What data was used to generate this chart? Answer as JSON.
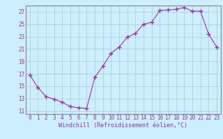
{
  "x": [
    0,
    1,
    2,
    3,
    4,
    5,
    6,
    7,
    8,
    9,
    10,
    11,
    12,
    13,
    14,
    15,
    16,
    17,
    18,
    19,
    20,
    21,
    22,
    23
  ],
  "y": [
    16.8,
    14.8,
    13.3,
    12.9,
    12.4,
    11.7,
    11.5,
    11.4,
    16.4,
    18.2,
    20.3,
    21.3,
    22.9,
    23.5,
    25.0,
    25.3,
    27.2,
    27.3,
    27.4,
    27.7,
    27.1,
    27.1,
    23.4,
    21.3
  ],
  "line_color": "#993399",
  "marker": "+",
  "marker_size": 4,
  "bg_color": "#cceeff",
  "grid_color": "#aacccc",
  "xlabel": "Windchill (Refroidissement éolien,°C)",
  "ylabel": "",
  "xlim": [
    -0.5,
    23.5
  ],
  "ylim": [
    10.5,
    28.0
  ],
  "yticks": [
    11,
    13,
    15,
    17,
    19,
    21,
    23,
    25,
    27
  ],
  "xticks": [
    0,
    1,
    2,
    3,
    4,
    5,
    6,
    7,
    8,
    9,
    10,
    11,
    12,
    13,
    14,
    15,
    16,
    17,
    18,
    19,
    20,
    21,
    22,
    23
  ],
  "font_color": "#993399",
  "label_fontsize": 6.0,
  "tick_fontsize": 5.5
}
